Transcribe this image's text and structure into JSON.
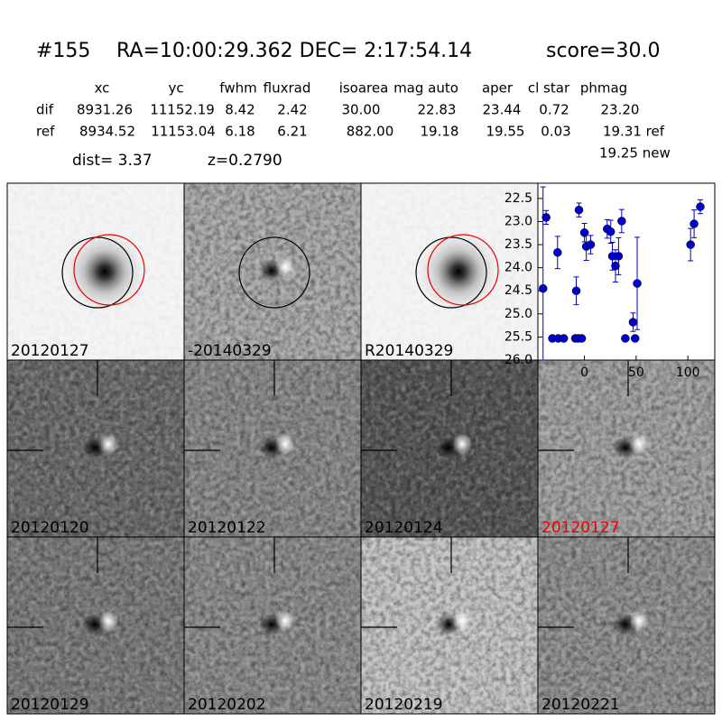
{
  "header": {
    "id": "#155",
    "coords": "RA=10:00:29.362 DEC= 2:17:54.14",
    "score": "score=30.0"
  },
  "table": {
    "columns": [
      "xc",
      "yc",
      "fwhm",
      "fluxrad",
      "isoarea",
      "mag auto",
      "aper",
      "cl star",
      "phmag"
    ],
    "rows": [
      [
        "dif",
        "8931.26",
        "11152.19",
        "8.42",
        "2.42",
        "30.00",
        "22.83",
        "23.44",
        "0.72",
        "23.20"
      ],
      [
        "ref",
        "8934.52",
        "11153.04",
        "6.18",
        "6.21",
        "882.00",
        "19.18",
        "19.55",
        "0.03",
        "19.31 ref"
      ]
    ],
    "extra": "19.25 new"
  },
  "info": {
    "dist": "dist=  3.37",
    "z": "z=0.2790"
  },
  "stamps": [
    "20120127",
    "-20140329",
    "R20140329",
    "20120120",
    "20120122",
    "20120124",
    "20120127",
    "20120129",
    "20120202",
    "20120219",
    "20120221"
  ],
  "chart_data": {
    "type": "scatter",
    "color": "#0000cc",
    "x": [
      -40,
      -37,
      -31,
      -25.4,
      -20,
      -26,
      -8.8,
      -6,
      -2.6,
      -7.9,
      -5.3,
      0,
      1.8,
      6,
      22,
      25.4,
      27,
      30,
      33,
      36,
      39.5,
      47,
      49,
      51,
      102.6,
      106,
      112
    ],
    "values": [
      24.45,
      22.91,
      25.53,
      25.53,
      25.53,
      23.67,
      25.53,
      25.53,
      25.53,
      24.5,
      22.75,
      23.24,
      23.54,
      23.5,
      23.16,
      23.22,
      23.75,
      23.96,
      23.75,
      22.99,
      25.53,
      25.18,
      25.53,
      24.34,
      23.5,
      23.05,
      22.68
    ],
    "errors": [
      2.2,
      0.15,
      0.05,
      0.05,
      0.05,
      0.35,
      0.05,
      0.05,
      0.05,
      0.3,
      0.15,
      0.2,
      0.3,
      0.2,
      0.2,
      0.25,
      0.3,
      0.35,
      0.4,
      0.25,
      0.05,
      0.2,
      0.05,
      1.0,
      0.35,
      0.3,
      0.15
    ],
    "xlim": [
      -45,
      126
    ],
    "ylim": [
      26.0,
      22.17
    ],
    "xticks": [
      0,
      50,
      100
    ],
    "yticks": [
      22.5,
      {
        "value": 23.0,
        "label": "23.0"
      },
      23.5,
      {
        "value": 24.0,
        "label": "24.0"
      },
      24.5,
      {
        "value": 25.0,
        "label": "25.0"
      },
      25.5,
      {
        "value": 26.0,
        "label": "26.0"
      }
    ]
  }
}
